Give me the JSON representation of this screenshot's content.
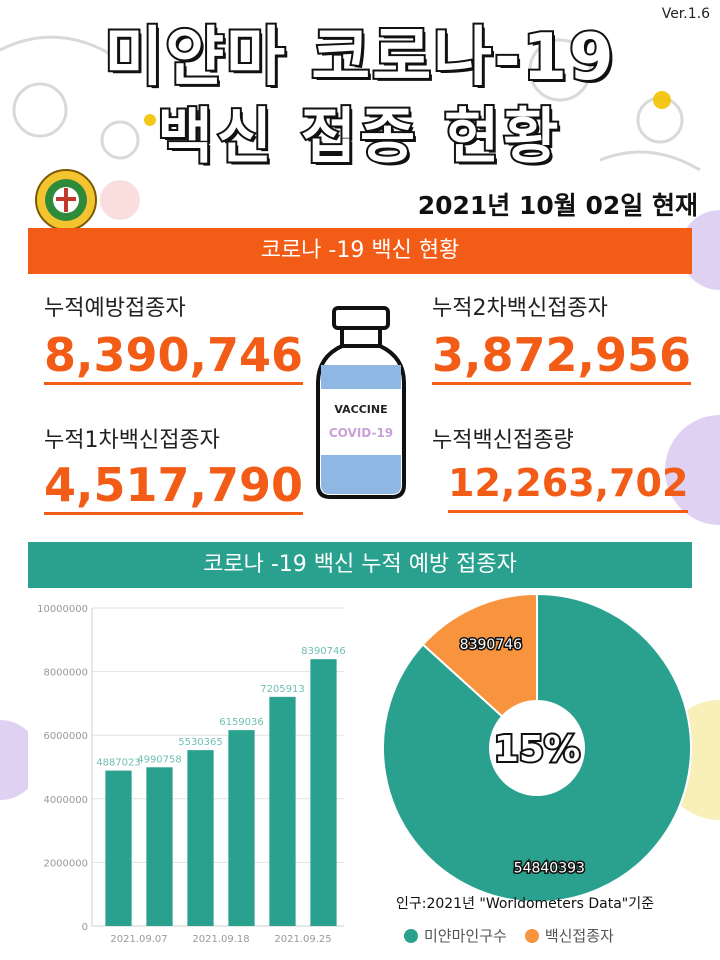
{
  "header": {
    "version": "Ver.1.6",
    "title_line1": "미얀마 코로나-19",
    "title_line2": "백신 접종 현황",
    "date": "2021년 10월 02일 현재"
  },
  "section1": {
    "banner": "코로나 -19 백신  현황",
    "stats": [
      {
        "label": "누적예방접종자",
        "value": "8,390,746"
      },
      {
        "label": "누적2차백신접종자",
        "value": "3,872,956"
      },
      {
        "label": "누적1차백신접종자",
        "value": "4,517,790"
      },
      {
        "label": "누적백신접종량",
        "value": "12,263,702"
      }
    ],
    "vial": {
      "line1": "VACCINE",
      "line2": "COVID-19"
    }
  },
  "section2": {
    "banner": "코로나 -19 백신 누적 예방 접종자",
    "source": "인구:2021년 \"Worldometers Data\"기준",
    "center_label": "15%",
    "legend": [
      {
        "label": "미얀마인구수",
        "color": "#2aa18f"
      },
      {
        "label": "백신접종자",
        "color": "#f7943d"
      }
    ]
  },
  "chart_data": [
    {
      "type": "bar",
      "categories": [
        "2021.09.07",
        "",
        "2021.09.18",
        "",
        "2021.09.25",
        ""
      ],
      "x_tick_labels": [
        "2021.09.07",
        "2021.09.18",
        "2021.09.25"
      ],
      "values": [
        4887023,
        4990758,
        5530365,
        6159036,
        7205913,
        8390746
      ],
      "data_labels": [
        "4887023",
        "4990758",
        "5530365",
        "6159036",
        "7205913",
        "8390746"
      ],
      "y_ticks": [
        "0",
        "2000000",
        "4000000",
        "6000000",
        "8000000",
        "10000000"
      ],
      "ylim": [
        0,
        10000000
      ],
      "color": "#2aa18f",
      "grid": true
    },
    {
      "type": "pie",
      "donut": true,
      "slices": [
        {
          "name": "미얀마인구수",
          "value": 54840393,
          "label": "54840393",
          "color": "#2aa18f"
        },
        {
          "name": "백신접종자",
          "value": 8390746,
          "label": "8390746",
          "color": "#f7943d"
        }
      ],
      "center_text": "15%"
    }
  ]
}
